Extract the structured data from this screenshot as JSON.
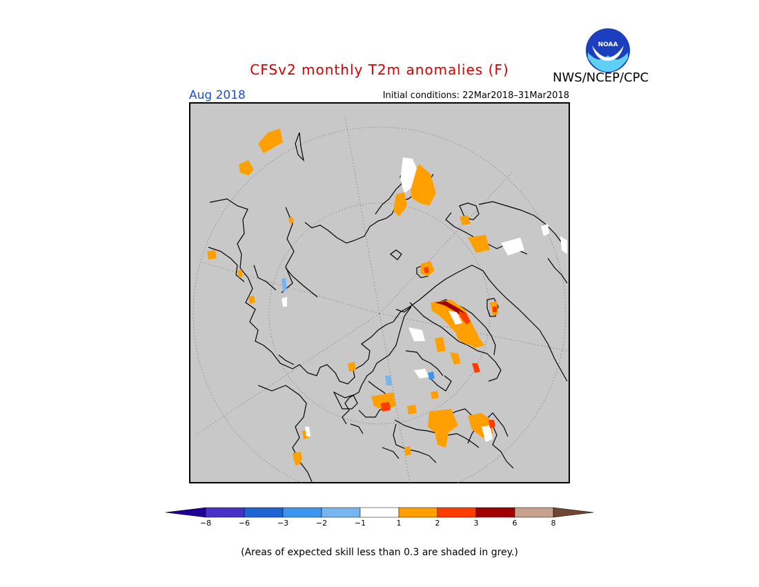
{
  "title": "CFSv2 monthly T2m anomalies (F)",
  "agency": "NWS/NCEP/CPC",
  "logo_text": "NOAA",
  "valid_month": "Aug 2018",
  "initial_conditions": "Initial conditions: 22Mar2018–31Mar2018",
  "footnote": "(Areas of expected skill less than 0.3 are shaded in grey.)",
  "colors": {
    "skill_mask": "#c8c8c8",
    "coastline": "#000000",
    "title": "#d40000",
    "month": "#1a4fd6"
  },
  "legend": {
    "bins": [
      {
        "color": "#1e0096"
      },
      {
        "color": "#4632c8"
      },
      {
        "color": "#1e64d2"
      },
      {
        "color": "#3c96f0"
      },
      {
        "color": "#78b4f0"
      },
      {
        "color": "#ffffff"
      },
      {
        "color": "#ffa000"
      },
      {
        "color": "#ff3c00"
      },
      {
        "color": "#a00000"
      },
      {
        "color": "#c8a08c"
      },
      {
        "color": "#6e4632"
      }
    ],
    "labels": [
      "−8",
      "−6",
      "−3",
      "−2",
      "−1",
      "1",
      "2",
      "3",
      "6",
      "8"
    ]
  }
}
